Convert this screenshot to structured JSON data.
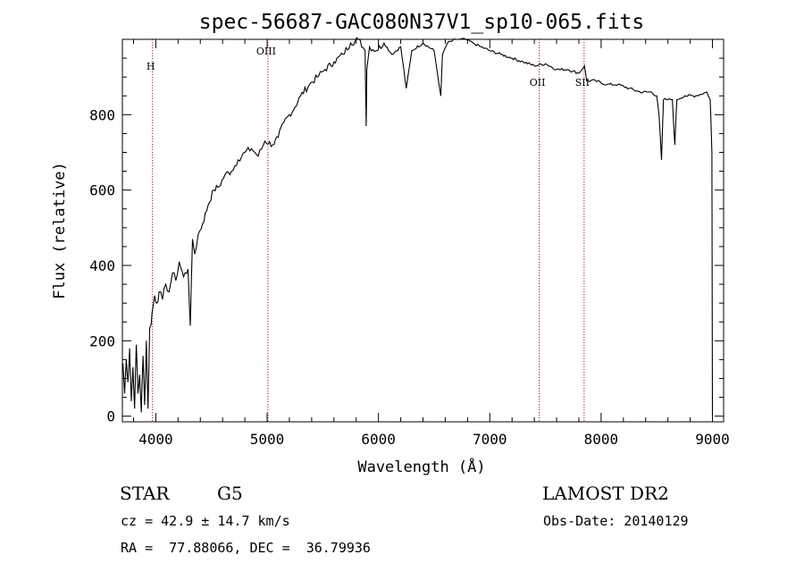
{
  "chart_data": {
    "type": "line",
    "title": "spec-56687-GAC080N37V1_sp10-065.fits",
    "xlabel": "Wavelength (Å)",
    "ylabel": "Flux (relative)",
    "xlim": [
      3700,
      9100
    ],
    "ylim": [
      -15,
      1000
    ],
    "x_ticks": [
      4000,
      5000,
      6000,
      7000,
      8000,
      9000
    ],
    "y_ticks": [
      0,
      200,
      400,
      600,
      800
    ],
    "grid": false,
    "line_color": "#000000",
    "marker_color": "#c00000",
    "spectral_lines": [
      {
        "label": "H",
        "x": 3970
      },
      {
        "label": "OIII",
        "x": 5007
      },
      {
        "label": "OII",
        "x": 7444
      },
      {
        "label": "SII",
        "x": 7847
      }
    ],
    "series": [
      {
        "x": [
          3705,
          3720,
          3735,
          3750,
          3765,
          3780,
          3795,
          3810,
          3825,
          3840,
          3855,
          3870,
          3885,
          3900,
          3915,
          3930,
          3945,
          3955,
          3965,
          3975,
          3990,
          4010,
          4030,
          4060,
          4090,
          4120,
          4150,
          4180,
          4210,
          4250,
          4290,
          4310,
          4330,
          4350,
          4380,
          4420,
          4470,
          4520,
          4570,
          4620,
          4680,
          4740,
          4800,
          4860,
          4920,
          4980,
          5050,
          5100,
          5150,
          5200,
          5250,
          5300,
          5380,
          5450,
          5520,
          5600,
          5680,
          5750,
          5820,
          5880,
          5890,
          5895,
          5920,
          5980,
          6050,
          6120,
          6200,
          6250,
          6300,
          6400,
          6500,
          6560,
          6575,
          6620,
          6700,
          6780,
          6850,
          6920,
          7000,
          7100,
          7200,
          7300,
          7400,
          7500,
          7600,
          7700,
          7800,
          7850,
          7870,
          7950,
          8050,
          8150,
          8250,
          8350,
          8450,
          8500,
          8520,
          8542,
          8560,
          8600,
          8640,
          8662,
          8680,
          8750,
          8850,
          8950,
          8980,
          8995,
          9000
        ],
        "values": [
          140,
          60,
          150,
          90,
          180,
          40,
          130,
          20,
          190,
          60,
          110,
          10,
          160,
          30,
          200,
          20,
          230,
          240,
          270,
          290,
          320,
          300,
          330,
          310,
          350,
          330,
          380,
          360,
          410,
          370,
          390,
          240,
          470,
          430,
          480,
          510,
          560,
          600,
          610,
          640,
          650,
          680,
          700,
          710,
          690,
          730,
          720,
          740,
          780,
          800,
          820,
          850,
          880,
          900,
          920,
          940,
          960,
          990,
          1000,
          970,
          770,
          920,
          980,
          970,
          990,
          960,
          980,
          870,
          970,
          990,
          970,
          850,
          960,
          990,
          1000,
          1000,
          990,
          980,
          970,
          960,
          950,
          940,
          930,
          935,
          920,
          920,
          910,
          930,
          890,
          890,
          880,
          880,
          870,
          860,
          860,
          850,
          800,
          680,
          840,
          840,
          840,
          720,
          840,
          850,
          850,
          860,
          840,
          700,
          0
        ]
      }
    ]
  },
  "info": {
    "object_class": "STAR",
    "subclass": "G5",
    "redshift": "cz = 42.9 ± 14.7 km/s",
    "coords": "RA =  77.88066, DEC =  36.79936",
    "survey": "LAMOST DR2",
    "obs_date": "Obs-Date: 20140129"
  }
}
